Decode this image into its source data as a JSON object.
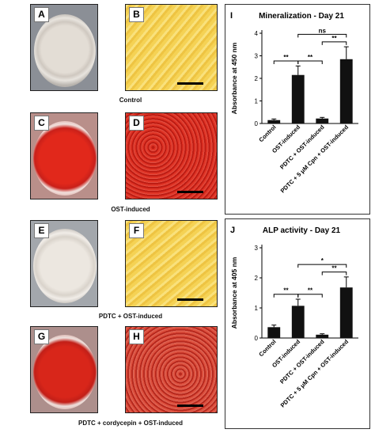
{
  "panel_letters": {
    "A": "A",
    "B": "B",
    "C": "C",
    "D": "D",
    "E": "E",
    "F": "F",
    "G": "G",
    "H": "H",
    "I": "I",
    "J": "J"
  },
  "captions": {
    "row1": "Control",
    "row2": "OST-induced",
    "row3": "PDTC + OST-induced",
    "row4": "PDTC + cordycepin + OST-induced"
  },
  "colors": {
    "alizarin_red": "#d7261b",
    "pale_yellow": "#f2cf50",
    "well_white": "#ebe6e0",
    "bar": "#111111"
  },
  "chart_data": [
    {
      "type": "bar",
      "title": "Mineralization - Day 21",
      "ylabel": "Absorbance at 450 nm",
      "categories": [
        "Control",
        "OST-induced",
        "PDTC + OST-induced",
        "PDTC + 5 μM Cpn + OST-induced"
      ],
      "values": [
        0.15,
        2.15,
        0.22,
        2.85
      ],
      "errors": [
        0.05,
        0.4,
        0.05,
        0.55
      ],
      "ylim": [
        0,
        4
      ],
      "yticks": [
        "0",
        "1",
        "2",
        "3",
        "4"
      ],
      "significance": [
        {
          "from": 0,
          "to": 1,
          "label": "**"
        },
        {
          "from": 1,
          "to": 2,
          "label": "**"
        },
        {
          "from": 2,
          "to": 3,
          "label": "**"
        },
        {
          "from": 1,
          "to": 3,
          "label": "ns"
        }
      ]
    },
    {
      "type": "bar",
      "title": "ALP activity - Day 21",
      "ylabel": "Absorbance at 405 nm",
      "categories": [
        "Control",
        "OST-induced",
        "PDTC + OST-induced",
        "PDTC + 5 μM Cpn + OST-induced"
      ],
      "values": [
        0.36,
        1.07,
        0.11,
        1.68
      ],
      "errors": [
        0.07,
        0.22,
        0.03,
        0.35
      ],
      "ylim": [
        0,
        3
      ],
      "yticks": [
        "0",
        "1",
        "2",
        "3"
      ],
      "significance": [
        {
          "from": 0,
          "to": 1,
          "label": "**"
        },
        {
          "from": 1,
          "to": 2,
          "label": "**"
        },
        {
          "from": 2,
          "to": 3,
          "label": "**"
        },
        {
          "from": 1,
          "to": 3,
          "label": "*"
        }
      ]
    }
  ]
}
